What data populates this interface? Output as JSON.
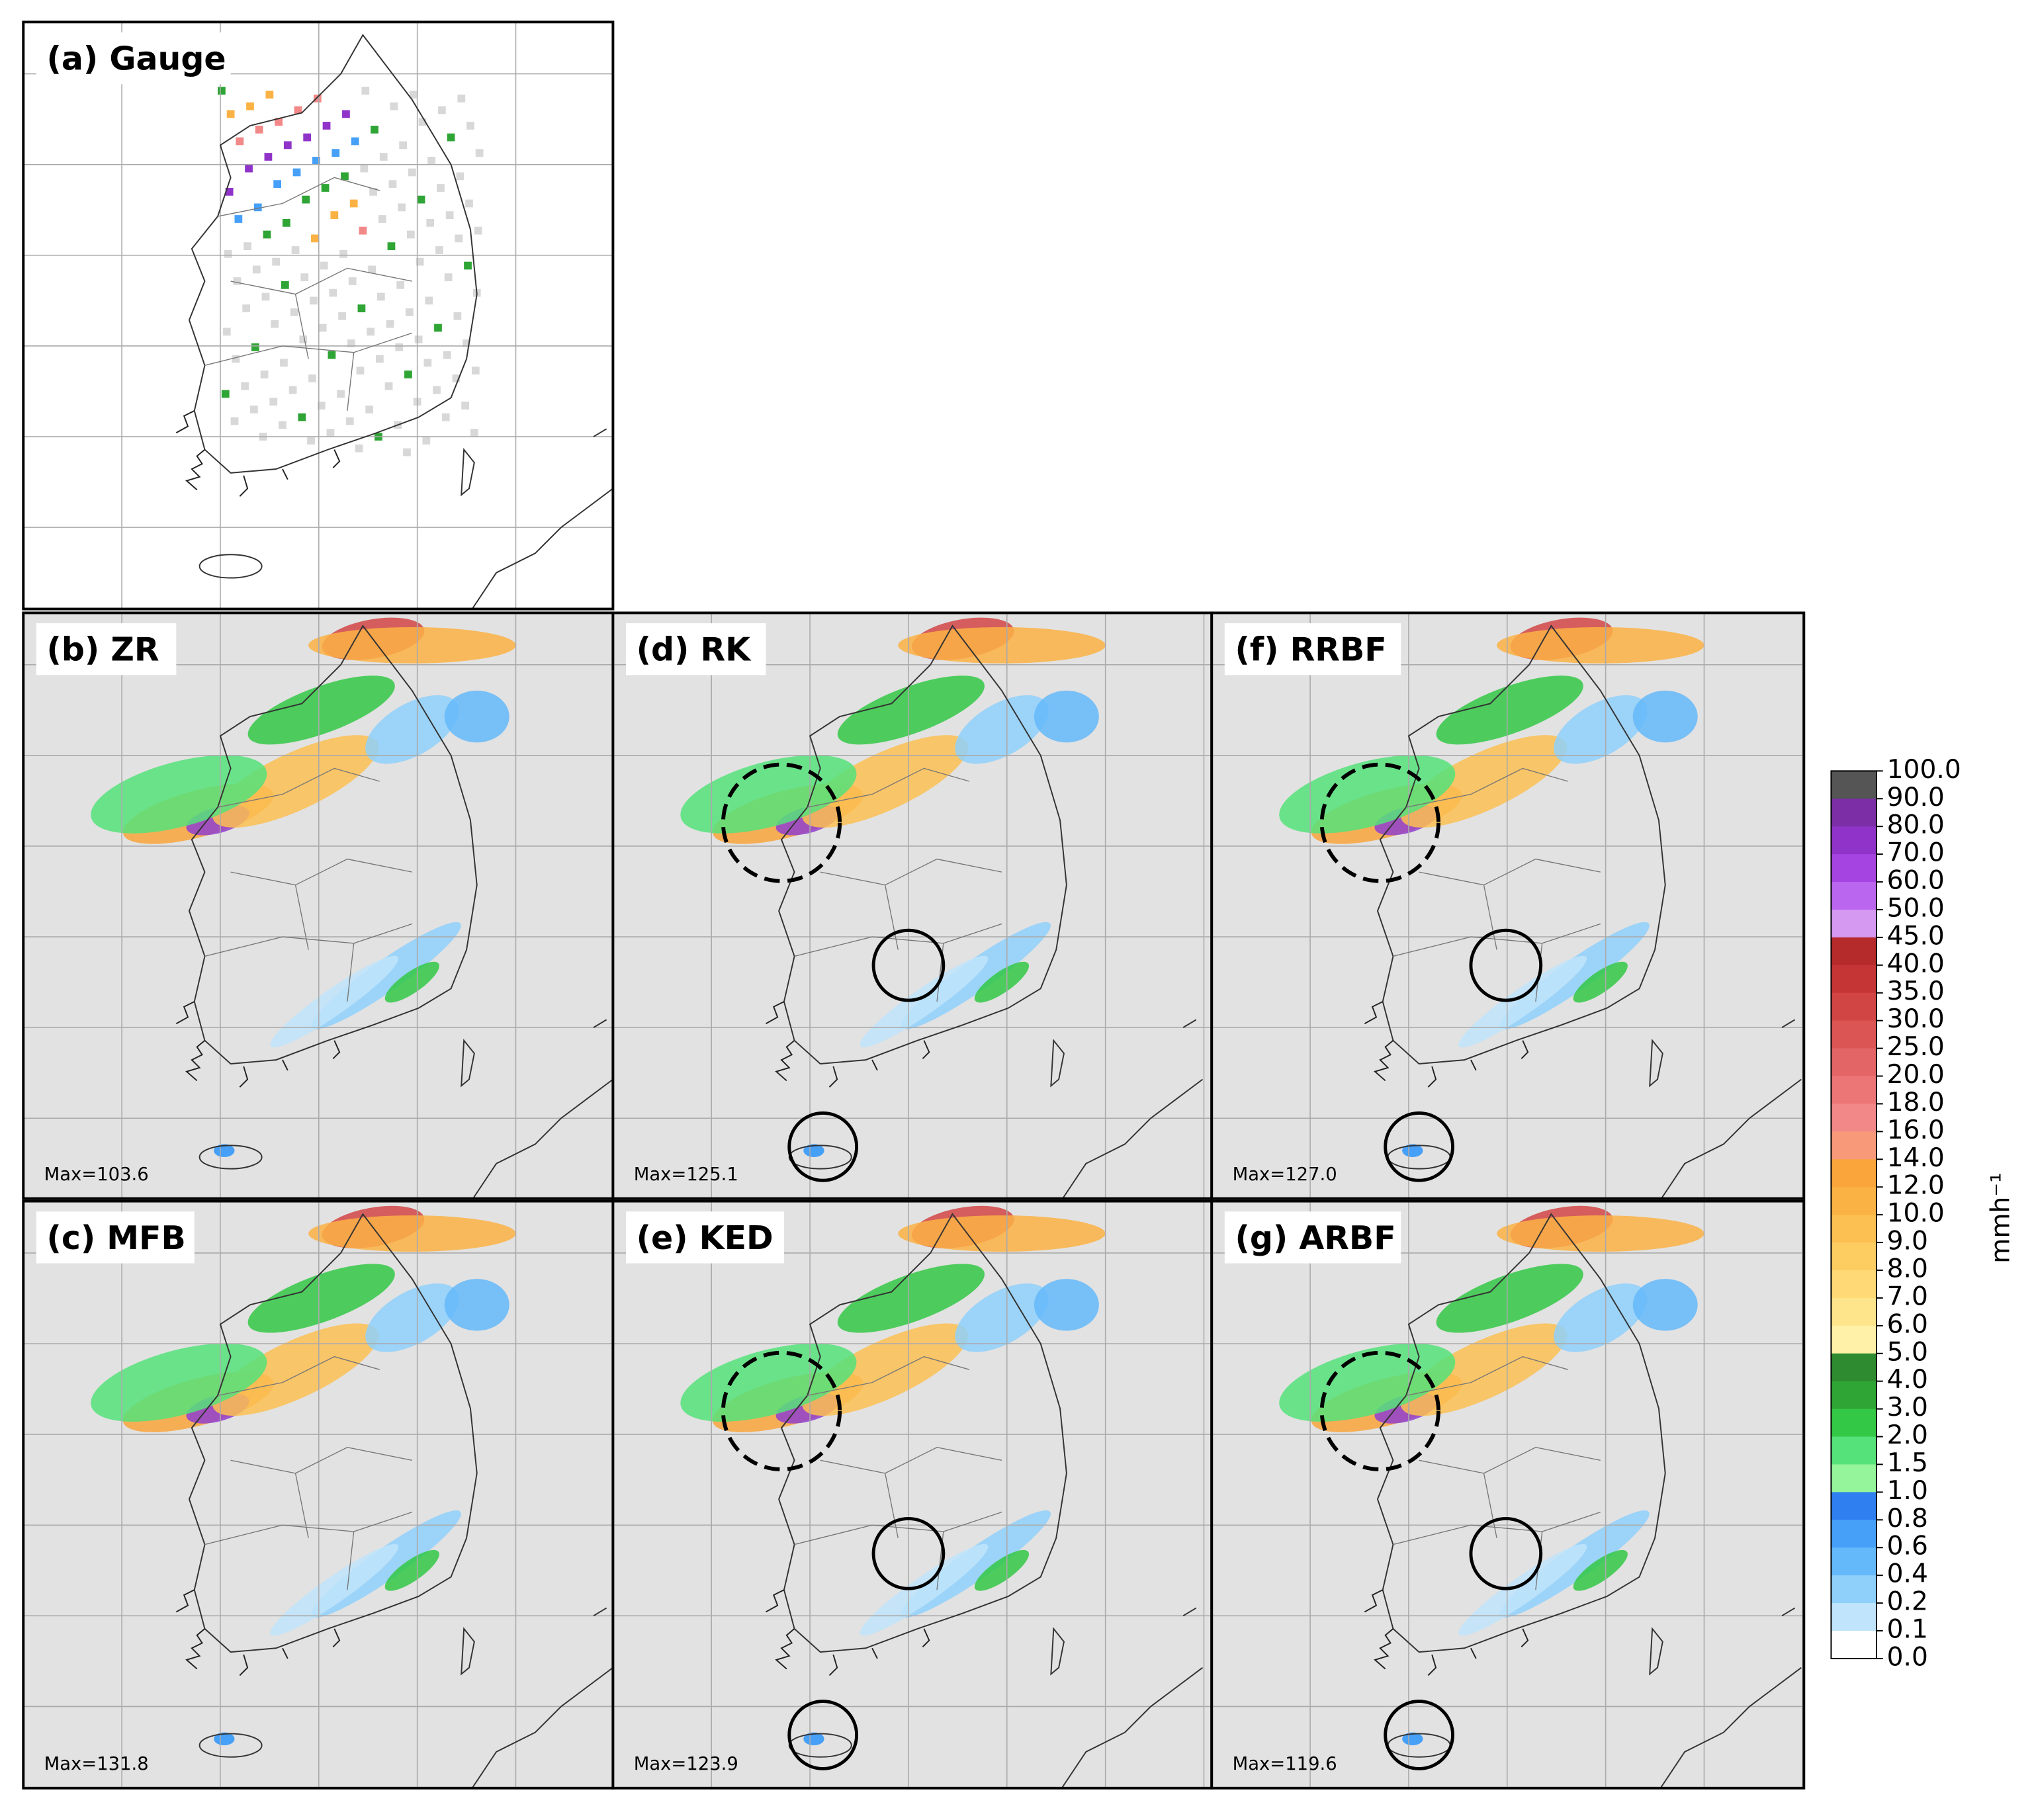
{
  "panels": [
    {
      "label": "(a)  Gauge"
    },
    {
      "label": "(b)  ZR",
      "max": "Max=103.6"
    },
    {
      "label": "(c)  MFB",
      "max": "Max=131.8"
    },
    {
      "label": "(d)  RK",
      "max": "Max=125.1"
    },
    {
      "label": "(e)  KED",
      "max": "Max=123.9"
    },
    {
      "label": "(f)  RRBF",
      "max": "Max=127.0"
    },
    {
      "label": "(g)  ARBF",
      "max": "Max=119.6"
    }
  ],
  "colorbar": {
    "unit": "mmh⁻¹",
    "labels": [
      "100.0",
      "90.0",
      "80.0",
      "70.0",
      "60.0",
      "50.0",
      "45.0",
      "40.0",
      "35.0",
      "30.0",
      "25.0",
      "20.0",
      "18.0",
      "16.0",
      "14.0",
      "12.0",
      "10.0",
      "9.0",
      "8.0",
      "7.0",
      "6.0",
      "5.0",
      "4.0",
      "3.0",
      "2.0",
      "1.5",
      "1.0",
      "0.8",
      "0.6",
      "0.4",
      "0.2",
      "0.1",
      "0.0"
    ],
    "colors": [
      "#555555",
      "#7b2ea6",
      "#8f33c9",
      "#a544e0",
      "#bb66ee",
      "#d699f2",
      "#b52a2a",
      "#c63535",
      "#d24545",
      "#dc5555",
      "#e46565",
      "#ec7575",
      "#f38888",
      "#f89a7a",
      "#f9a53c",
      "#fbb244",
      "#fcc052",
      "#fdcd62",
      "#fed975",
      "#fee58c",
      "#fff2a8",
      "#2e8b30",
      "#2fa535",
      "#33c845",
      "#55e27a",
      "#95f59a",
      "#2f7ff0",
      "#46a0f8",
      "#64b9fa",
      "#8fd0fb",
      "#bfe4fb",
      "#dcdcdc"
    ]
  }
}
